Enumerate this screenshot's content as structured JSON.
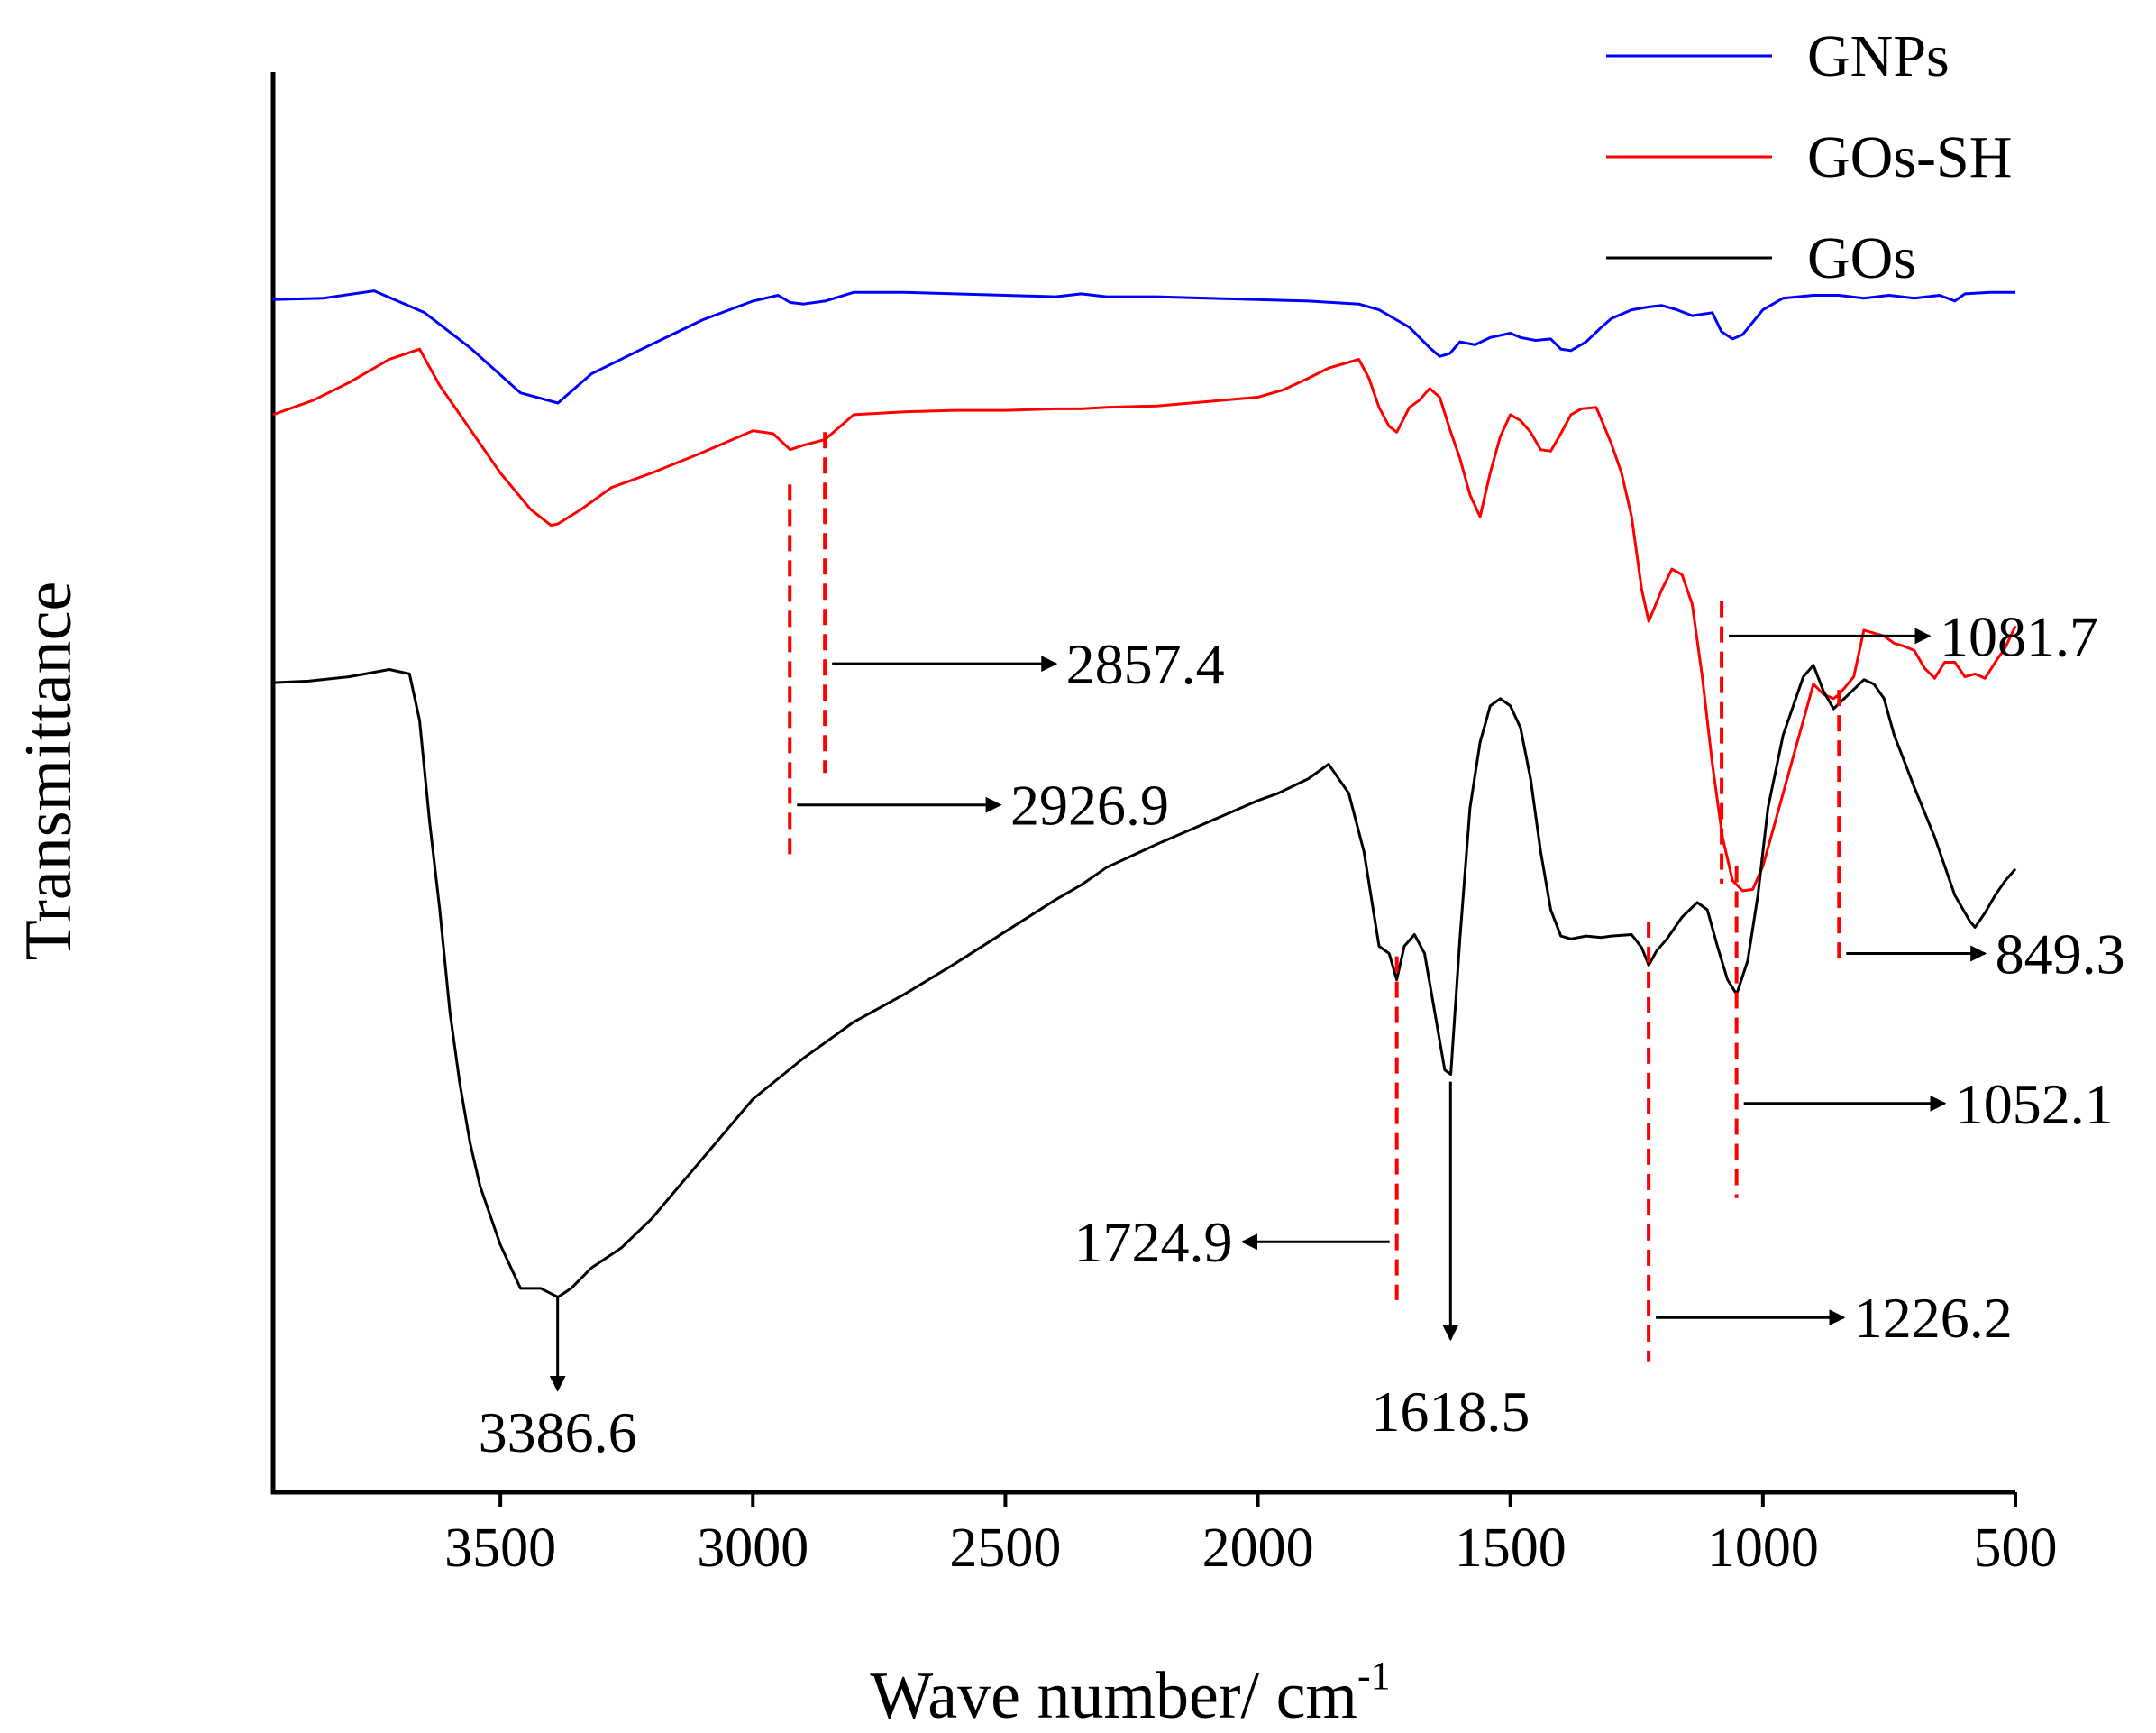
{
  "chart_data": {
    "type": "line",
    "title": "",
    "xlabel": "Wave number/ cm",
    "xlabel_superscript": "-1",
    "ylabel": "Transmittance",
    "xlim": [
      3950,
      500
    ],
    "x_reversed": true,
    "ylim": [
      0,
      1
    ],
    "y_ticks_shown": false,
    "grid": false,
    "legend_position": "top-right",
    "x_ticks": [
      3500,
      3000,
      2500,
      2000,
      1500,
      1000,
      500
    ],
    "colors": {
      "GNPs": "#0000ff",
      "GOs-SH": "#ff0000",
      "GOs": "#000000",
      "guide": "#ff0000",
      "axis": "#000000"
    },
    "series": [
      {
        "name": "GNPs",
        "color": "#0000ff",
        "x": [
          3950,
          3850,
          3750,
          3650,
          3560,
          3460,
          3386,
          3320,
          3220,
          3100,
          3000,
          2950,
          2926,
          2900,
          2857,
          2800,
          2700,
          2600,
          2500,
          2400,
          2350,
          2300,
          2200,
          2100,
          2000,
          1900,
          1800,
          1760,
          1700,
          1660,
          1640,
          1620,
          1600,
          1570,
          1540,
          1500,
          1480,
          1450,
          1420,
          1400,
          1380,
          1350,
          1320,
          1300,
          1260,
          1226,
          1200,
          1170,
          1140,
          1100,
          1082,
          1060,
          1040,
          1000,
          960,
          900,
          850,
          800,
          750,
          700,
          650,
          620,
          600,
          550,
          500
        ],
        "y": [
          0.819,
          0.82,
          0.825,
          0.81,
          0.786,
          0.755,
          0.748,
          0.768,
          0.785,
          0.805,
          0.818,
          0.822,
          0.817,
          0.816,
          0.818,
          0.824,
          0.824,
          0.823,
          0.822,
          0.821,
          0.823,
          0.821,
          0.821,
          0.82,
          0.819,
          0.818,
          0.816,
          0.812,
          0.8,
          0.786,
          0.78,
          0.782,
          0.79,
          0.788,
          0.793,
          0.796,
          0.793,
          0.791,
          0.792,
          0.785,
          0.784,
          0.79,
          0.8,
          0.806,
          0.812,
          0.814,
          0.815,
          0.812,
          0.808,
          0.81,
          0.797,
          0.792,
          0.795,
          0.812,
          0.82,
          0.822,
          0.822,
          0.82,
          0.822,
          0.82,
          0.822,
          0.818,
          0.823,
          0.824,
          0.824
        ]
      },
      {
        "name": "GOs-SH",
        "color": "#ff0000",
        "x": [
          3950,
          3870,
          3800,
          3720,
          3660,
          3620,
          3560,
          3500,
          3440,
          3400,
          3386,
          3340,
          3280,
          3200,
          3100,
          3000,
          2960,
          2926,
          2900,
          2857,
          2800,
          2700,
          2600,
          2500,
          2400,
          2350,
          2300,
          2200,
          2100,
          2000,
          1950,
          1900,
          1860,
          1800,
          1780,
          1760,
          1740,
          1725,
          1700,
          1680,
          1660,
          1640,
          1620,
          1600,
          1580,
          1560,
          1540,
          1520,
          1500,
          1480,
          1460,
          1440,
          1420,
          1400,
          1380,
          1360,
          1330,
          1300,
          1280,
          1260,
          1240,
          1226,
          1200,
          1180,
          1160,
          1140,
          1120,
          1100,
          1080,
          1060,
          1040,
          1020,
          1000,
          960,
          920,
          900,
          880,
          860,
          849,
          820,
          800,
          760,
          740,
          720,
          700,
          680,
          660,
          640,
          620,
          600,
          580,
          560,
          540,
          520,
          500
        ],
        "y": [
          0.74,
          0.75,
          0.762,
          0.778,
          0.785,
          0.76,
          0.73,
          0.7,
          0.675,
          0.664,
          0.665,
          0.675,
          0.69,
          0.7,
          0.714,
          0.729,
          0.727,
          0.716,
          0.719,
          0.723,
          0.74,
          0.742,
          0.743,
          0.743,
          0.744,
          0.744,
          0.745,
          0.746,
          0.749,
          0.752,
          0.757,
          0.765,
          0.772,
          0.778,
          0.765,
          0.745,
          0.732,
          0.728,
          0.745,
          0.75,
          0.758,
          0.752,
          0.73,
          0.71,
          0.685,
          0.67,
          0.7,
          0.725,
          0.74,
          0.736,
          0.728,
          0.716,
          0.715,
          0.727,
          0.74,
          0.744,
          0.745,
          0.72,
          0.7,
          0.67,
          0.62,
          0.598,
          0.62,
          0.634,
          0.63,
          0.61,
          0.56,
          0.5,
          0.45,
          0.42,
          0.413,
          0.414,
          0.43,
          0.48,
          0.53,
          0.555,
          0.548,
          0.545,
          0.548,
          0.56,
          0.592,
          0.588,
          0.583,
          0.581,
          0.578,
          0.566,
          0.559,
          0.57,
          0.57,
          0.56,
          0.562,
          0.559,
          0.57,
          0.58,
          0.595
        ]
      },
      {
        "name": "GOs",
        "color": "#000000",
        "x": [
          3950,
          3880,
          3800,
          3720,
          3680,
          3660,
          3640,
          3620,
          3600,
          3580,
          3560,
          3540,
          3500,
          3460,
          3420,
          3386,
          3360,
          3320,
          3260,
          3200,
          3100,
          3000,
          2900,
          2800,
          2700,
          2600,
          2500,
          2400,
          2350,
          2300,
          2200,
          2100,
          2000,
          1960,
          1900,
          1860,
          1820,
          1790,
          1760,
          1740,
          1725,
          1710,
          1690,
          1670,
          1650,
          1630,
          1618,
          1600,
          1580,
          1560,
          1540,
          1520,
          1500,
          1480,
          1460,
          1440,
          1420,
          1400,
          1380,
          1350,
          1320,
          1300,
          1260,
          1240,
          1226,
          1210,
          1190,
          1160,
          1130,
          1110,
          1090,
          1070,
          1052,
          1030,
          1010,
          990,
          960,
          920,
          900,
          880,
          860,
          830,
          800,
          780,
          760,
          740,
          700,
          660,
          620,
          600,
          590,
          580,
          560,
          540,
          520,
          500
        ],
        "y": [
          0.556,
          0.557,
          0.56,
          0.565,
          0.562,
          0.53,
          0.46,
          0.4,
          0.33,
          0.28,
          0.24,
          0.21,
          0.17,
          0.14,
          0.14,
          0.134,
          0.14,
          0.154,
          0.168,
          0.188,
          0.229,
          0.27,
          0.298,
          0.323,
          0.342,
          0.363,
          0.385,
          0.407,
          0.417,
          0.429,
          0.445,
          0.46,
          0.475,
          0.48,
          0.49,
          0.5,
          0.48,
          0.44,
          0.375,
          0.37,
          0.352,
          0.375,
          0.383,
          0.37,
          0.33,
          0.29,
          0.287,
          0.38,
          0.47,
          0.515,
          0.54,
          0.545,
          0.54,
          0.525,
          0.49,
          0.44,
          0.4,
          0.382,
          0.38,
          0.382,
          0.381,
          0.382,
          0.383,
          0.374,
          0.362,
          0.372,
          0.38,
          0.395,
          0.405,
          0.4,
          0.375,
          0.352,
          0.342,
          0.365,
          0.41,
          0.47,
          0.52,
          0.56,
          0.568,
          0.55,
          0.538,
          0.548,
          0.558,
          0.555,
          0.545,
          0.52,
          0.484,
          0.45,
          0.41,
          0.398,
          0.392,
          0.388,
          0.398,
          0.41,
          0.42,
          0.428
        ]
      }
    ],
    "annotations": [
      {
        "label": "2857.4",
        "x": 2857.4,
        "line_y": [
          0.494,
          0.728
        ],
        "arrow_dir": "right",
        "arrow_y": 0.569,
        "arrow_x_end": 2400,
        "text_x": 2380,
        "text_anchor": "start"
      },
      {
        "label": "2926.9",
        "x": 2926.9,
        "line_y": [
          0.438,
          0.692
        ],
        "arrow_dir": "right",
        "arrow_y": 0.472,
        "arrow_x_end": 2510,
        "text_x": 2490,
        "text_anchor": "start"
      },
      {
        "label": "1081.7",
        "x": 1081.7,
        "line_y": [
          0.418,
          0.612
        ],
        "arrow_dir": "right",
        "arrow_y": 0.588,
        "arrow_x_end": 670,
        "text_x": 650,
        "text_anchor": "start"
      },
      {
        "label": "849.3",
        "x": 849.3,
        "line_y": [
          0.362,
          0.551
        ],
        "arrow_dir": "right",
        "arrow_y": 0.37,
        "arrow_x_end": 560,
        "text_x": 540,
        "text_anchor": "start"
      },
      {
        "label": "1052.1",
        "x": 1052.1,
        "line_y": [
          0.202,
          0.43
        ],
        "arrow_dir": "right",
        "arrow_y": 0.267,
        "arrow_x_end": 640,
        "text_x": 620,
        "text_anchor": "start"
      },
      {
        "label": "1724.9",
        "x": 1724.9,
        "line_y": [
          0.132,
          0.368
        ],
        "arrow_dir": "left",
        "arrow_y": 0.172,
        "arrow_x_end": 2030,
        "text_x": 2050,
        "text_anchor": "end"
      },
      {
        "label": "1226.2",
        "x": 1226.2,
        "line_y": [
          0.09,
          0.392
        ],
        "arrow_dir": "right",
        "arrow_y": 0.12,
        "arrow_x_end": 840,
        "text_x": 820,
        "text_anchor": "start"
      },
      {
        "label": "1618.5",
        "x": 1618.5,
        "arrow_dir": "down",
        "arrow_from_y": 0.282,
        "arrow_to_y": 0.105,
        "text_y": 0.042,
        "text_anchor": "middle"
      },
      {
        "label": "3386.6",
        "x": 3386.6,
        "arrow_dir": "down",
        "arrow_from_y": 0.134,
        "arrow_to_y": 0.07,
        "text_y": 0.028,
        "text_anchor": "middle"
      }
    ]
  }
}
